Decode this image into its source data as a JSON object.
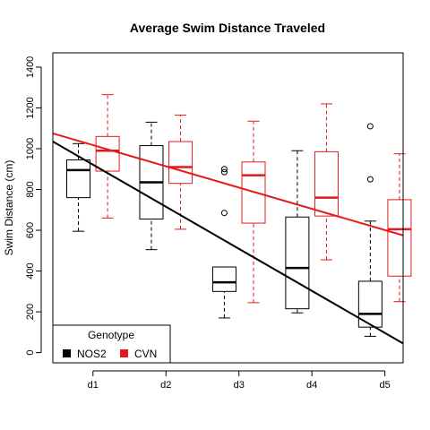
{
  "chart_data": {
    "type": "box",
    "title": "Average Swim Distance Traveled",
    "xlabel": "",
    "ylabel": "Swim Distance (cm)",
    "ylim": [
      -50,
      1470
    ],
    "yticks": [
      0,
      200,
      400,
      600,
      800,
      1000,
      1200,
      1400
    ],
    "categories": [
      "d1",
      "d2",
      "d3",
      "d4",
      "d5"
    ],
    "legend": {
      "title": "Genotype",
      "position": "bottom-left"
    },
    "series": [
      {
        "name": "NOS2",
        "color": "#000000",
        "boxes": [
          {
            "whisker_low": 595,
            "q1": 760,
            "median": 895,
            "q3": 945,
            "whisker_high": 1025,
            "outliers": []
          },
          {
            "whisker_low": 505,
            "q1": 655,
            "median": 835,
            "q3": 1015,
            "whisker_high": 1130,
            "outliers": []
          },
          {
            "whisker_low": 170,
            "q1": 300,
            "median": 345,
            "q3": 420,
            "whisker_high": 420,
            "outliers": [
              685,
              885,
              900
            ]
          },
          {
            "whisker_low": 195,
            "q1": 215,
            "median": 415,
            "q3": 665,
            "whisker_high": 990,
            "outliers": []
          },
          {
            "whisker_low": 80,
            "q1": 125,
            "median": 190,
            "q3": 350,
            "whisker_high": 645,
            "outliers": [
              850,
              1110
            ]
          }
        ],
        "trend": {
          "x": [
            0.45,
            5.25
          ],
          "y": [
            1035,
            45
          ]
        }
      },
      {
        "name": "CVN",
        "color": "#e41a1c",
        "boxes": [
          {
            "whisker_low": 660,
            "q1": 890,
            "median": 990,
            "q3": 1060,
            "whisker_high": 1265,
            "outliers": []
          },
          {
            "whisker_low": 605,
            "q1": 830,
            "median": 910,
            "q3": 1035,
            "whisker_high": 1165,
            "outliers": []
          },
          {
            "whisker_low": 245,
            "q1": 635,
            "median": 870,
            "q3": 935,
            "whisker_high": 1135,
            "outliers": []
          },
          {
            "whisker_low": 455,
            "q1": 670,
            "median": 760,
            "q3": 985,
            "whisker_high": 1220,
            "outliers": []
          },
          {
            "whisker_low": 250,
            "q1": 375,
            "median": 605,
            "q3": 750,
            "whisker_high": 975,
            "outliers": []
          }
        ],
        "trend": {
          "x": [
            0.45,
            5.25
          ],
          "y": [
            1075,
            575
          ]
        }
      }
    ]
  }
}
